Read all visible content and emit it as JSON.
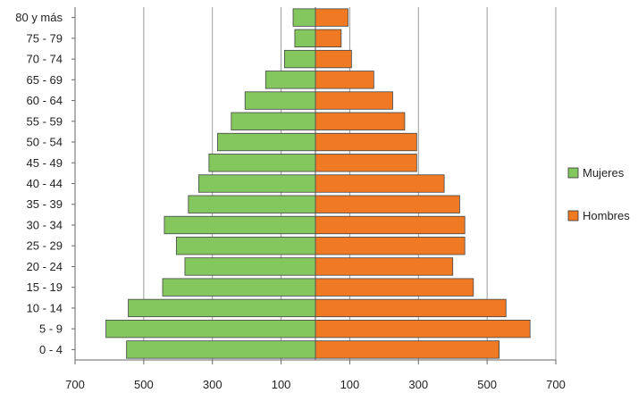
{
  "chart_data": {
    "type": "bar",
    "orientation": "horizontal",
    "layout": "population-pyramid",
    "title": "",
    "xlabel": "",
    "ylabel": "",
    "categories": [
      "0 - 4",
      "5 - 9",
      "10 - 14",
      "15 - 19",
      "20 - 24",
      "25 - 29",
      "30 - 34",
      "35 - 39",
      "40 - 44",
      "45 - 49",
      "50 - 54",
      "55 - 59",
      "60 - 64",
      "65 - 69",
      "70 - 74",
      "75 - 79",
      "80 y más"
    ],
    "series": [
      {
        "name": "Mujeres",
        "side": "left",
        "color": "#84c75e",
        "values": [
          550,
          610,
          545,
          445,
          380,
          405,
          440,
          370,
          340,
          310,
          285,
          245,
          205,
          145,
          90,
          60,
          65
        ]
      },
      {
        "name": "Hombres",
        "side": "right",
        "color": "#f07a24",
        "values": [
          535,
          625,
          555,
          460,
          400,
          435,
          435,
          420,
          375,
          295,
          295,
          260,
          225,
          170,
          105,
          75,
          95
        ]
      }
    ],
    "xlim": [
      -700,
      700
    ],
    "x_ticks": [
      -700,
      -500,
      -300,
      -100,
      100,
      300,
      500,
      700
    ],
    "x_tick_labels": [
      "700",
      "500",
      "300",
      "100",
      "100",
      "300",
      "500",
      "700"
    ],
    "grid": true,
    "legend_position": "right"
  }
}
